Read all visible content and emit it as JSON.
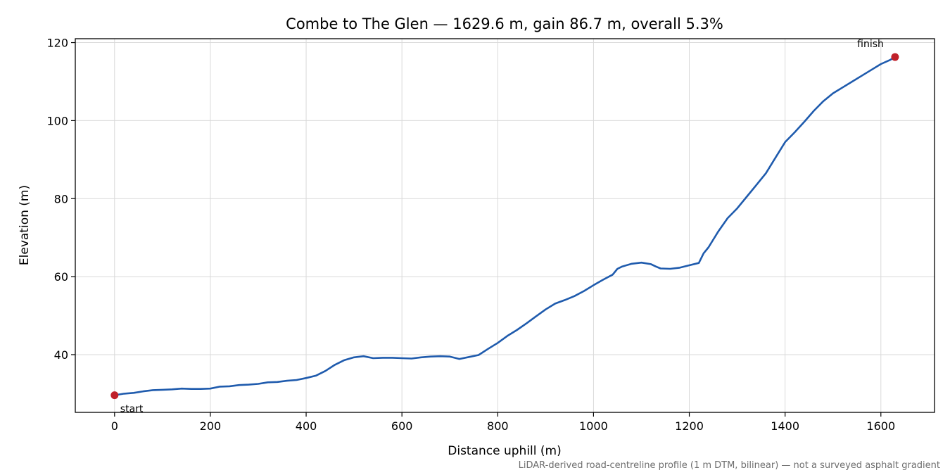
{
  "chart_data": {
    "type": "line",
    "title": "Combe to The Glen — 1629.6 m, gain 86.7 m, overall 5.3%",
    "xlabel": "Distance uphill (m)",
    "ylabel": "Elevation (m)",
    "xlim": [
      -82,
      1712
    ],
    "ylim": [
      25.2,
      121
    ],
    "xticks": [
      0,
      200,
      400,
      600,
      800,
      1000,
      1200,
      1400,
      1600
    ],
    "yticks": [
      40,
      60,
      80,
      100,
      120
    ],
    "grid": true,
    "footnote": "LiDAR-derived road-centreline profile (1 m DTM, bilinear) — not a surveyed asphalt gradient",
    "series": [
      {
        "color": "#1f5bad",
        "x": [
          0,
          20,
          40,
          60,
          80,
          100,
          120,
          140,
          160,
          180,
          200,
          220,
          240,
          260,
          280,
          300,
          320,
          340,
          360,
          380,
          400,
          420,
          440,
          460,
          480,
          500,
          520,
          540,
          560,
          580,
          600,
          620,
          640,
          660,
          680,
          700,
          720,
          740,
          760,
          780,
          800,
          820,
          840,
          860,
          880,
          900,
          920,
          940,
          960,
          980,
          1000,
          1020,
          1040,
          1050,
          1060,
          1080,
          1100,
          1120,
          1130,
          1140,
          1160,
          1180,
          1200,
          1220,
          1230,
          1240,
          1260,
          1280,
          1300,
          1320,
          1340,
          1360,
          1380,
          1400,
          1420,
          1440,
          1460,
          1480,
          1500,
          1520,
          1540,
          1560,
          1580,
          1600,
          1620,
          1629.6
        ],
        "y": [
          29.6,
          30.0,
          30.2,
          30.6,
          30.9,
          31.0,
          31.1,
          31.3,
          31.2,
          31.2,
          31.3,
          31.8,
          31.9,
          32.2,
          32.3,
          32.5,
          32.9,
          33.0,
          33.3,
          33.5,
          34.0,
          34.6,
          35.8,
          37.4,
          38.6,
          39.3,
          39.6,
          39.1,
          39.2,
          39.2,
          39.1,
          39.0,
          39.3,
          39.5,
          39.6,
          39.5,
          38.9,
          39.4,
          39.9,
          41.5,
          43.0,
          44.8,
          46.3,
          48.0,
          49.8,
          51.6,
          53.1,
          54.0,
          55.0,
          56.3,
          57.8,
          59.2,
          60.5,
          62.0,
          62.6,
          63.3,
          63.6,
          63.2,
          62.6,
          62.1,
          62.0,
          62.3,
          62.9,
          63.5,
          66.0,
          67.5,
          71.5,
          75.0,
          77.5,
          80.5,
          83.5,
          86.5,
          90.5,
          94.5,
          97.0,
          99.7,
          102.5,
          105.0,
          107.0,
          108.5,
          110.0,
          111.5,
          113.0,
          114.5,
          115.6,
          116.3
        ]
      }
    ],
    "markers": [
      {
        "label": "start",
        "x": 0,
        "y": 29.6,
        "color": "#c0202a"
      },
      {
        "label": "finish",
        "x": 1629.6,
        "y": 116.3,
        "color": "#c0202a"
      }
    ]
  }
}
